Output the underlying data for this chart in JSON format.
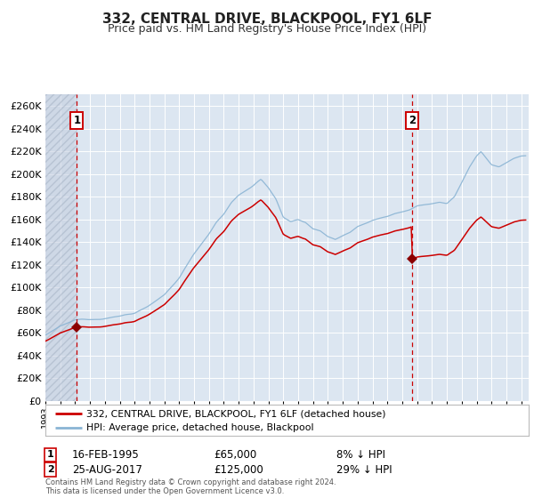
{
  "title": "332, CENTRAL DRIVE, BLACKPOOL, FY1 6LF",
  "subtitle": "Price paid vs. HM Land Registry's House Price Index (HPI)",
  "legend_line1": "332, CENTRAL DRIVE, BLACKPOOL, FY1 6LF (detached house)",
  "legend_line2": "HPI: Average price, detached house, Blackpool",
  "footnote": "Contains HM Land Registry data © Crown copyright and database right 2024.\nThis data is licensed under the Open Government Licence v3.0.",
  "annotation1_label": "1",
  "annotation1_date": "16-FEB-1995",
  "annotation1_price": "£65,000",
  "annotation1_hpi": "8% ↓ HPI",
  "annotation2_label": "2",
  "annotation2_date": "25-AUG-2017",
  "annotation2_price": "£125,000",
  "annotation2_hpi": "29% ↓ HPI",
  "sale1_x": 1995.12,
  "sale1_y": 65000,
  "sale2_x": 2017.65,
  "sale2_y": 125000,
  "ylim": [
    0,
    270000
  ],
  "xlim": [
    1993.0,
    2025.5
  ],
  "plot_bg_color": "#dce6f1",
  "grid_color": "#ffffff",
  "red_line_color": "#cc0000",
  "blue_line_color": "#8ab4d4",
  "dashed_line_color": "#cc0000",
  "marker_color": "#8b0000",
  "annotation_box_edge": "#cc0000",
  "hpi_anchors": [
    [
      1993.0,
      58000
    ],
    [
      1994.0,
      65000
    ],
    [
      1995.0,
      70000
    ],
    [
      1996.0,
      71000
    ],
    [
      1997.0,
      73000
    ],
    [
      1998.0,
      75000
    ],
    [
      1999.0,
      78000
    ],
    [
      2000.0,
      85000
    ],
    [
      2001.0,
      93000
    ],
    [
      2002.0,
      108000
    ],
    [
      2003.0,
      130000
    ],
    [
      2004.0,
      148000
    ],
    [
      2004.5,
      158000
    ],
    [
      2005.0,
      165000
    ],
    [
      2005.5,
      175000
    ],
    [
      2006.0,
      182000
    ],
    [
      2007.0,
      190000
    ],
    [
      2007.5,
      195000
    ],
    [
      2008.0,
      188000
    ],
    [
      2008.5,
      178000
    ],
    [
      2009.0,
      162000
    ],
    [
      2009.5,
      158000
    ],
    [
      2010.0,
      160000
    ],
    [
      2010.5,
      158000
    ],
    [
      2011.0,
      152000
    ],
    [
      2011.5,
      150000
    ],
    [
      2012.0,
      145000
    ],
    [
      2012.5,
      143000
    ],
    [
      2013.0,
      147000
    ],
    [
      2013.5,
      150000
    ],
    [
      2014.0,
      155000
    ],
    [
      2014.5,
      158000
    ],
    [
      2015.0,
      161000
    ],
    [
      2015.5,
      163000
    ],
    [
      2016.0,
      165000
    ],
    [
      2016.5,
      168000
    ],
    [
      2017.0,
      170000
    ],
    [
      2017.5,
      172000
    ],
    [
      2018.0,
      175000
    ],
    [
      2018.5,
      176000
    ],
    [
      2019.0,
      177000
    ],
    [
      2019.5,
      178000
    ],
    [
      2020.0,
      176000
    ],
    [
      2020.5,
      182000
    ],
    [
      2021.0,
      195000
    ],
    [
      2021.5,
      208000
    ],
    [
      2022.0,
      218000
    ],
    [
      2022.3,
      222000
    ],
    [
      2022.7,
      215000
    ],
    [
      2023.0,
      210000
    ],
    [
      2023.5,
      208000
    ],
    [
      2024.0,
      212000
    ],
    [
      2024.5,
      216000
    ],
    [
      2025.0,
      218000
    ]
  ]
}
